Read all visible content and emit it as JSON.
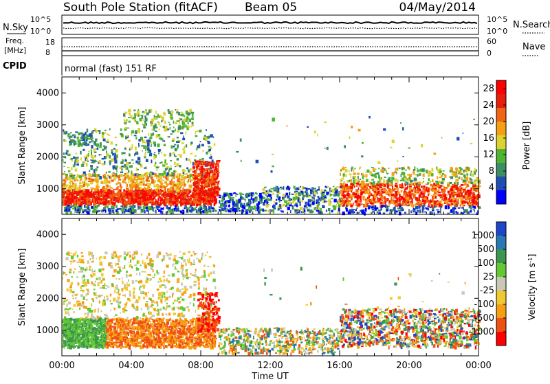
{
  "header": {
    "station": "South Pole Station (fitACF)",
    "beam": "Beam 05",
    "date": "04/May/2014"
  },
  "summary_panels": {
    "nsky_label": "N.Sky",
    "nsearch_label": "N.Search",
    "nsky_ticks": [
      "10^5",
      "10^0"
    ],
    "nsearch_ticks": [
      "10^5",
      "10^0"
    ],
    "freq_label_1": "Freq.",
    "freq_label_2": "[MHz]",
    "freq_ticks": [
      "18",
      "8"
    ],
    "nave_label": "Nave",
    "nave_ticks": [
      "60",
      "0"
    ],
    "cpid_label": "CPID",
    "cpid_text": "normal (fast) 151 RF"
  },
  "colors": {
    "power": [
      "#0000ff",
      "#1e4eb4",
      "#3c8c64",
      "#50b432",
      "#dcd232",
      "#f5a014",
      "#f06414",
      "#e61e0a",
      "#ff0000"
    ],
    "velocity": [
      "#ff0000",
      "#f05014",
      "#f5a014",
      "#f0c832",
      "#c8c8b4",
      "#64c832",
      "#3c9650",
      "#2878b4",
      "#1e46c8"
    ]
  },
  "chart_data": [
    {
      "type": "heatmap",
      "name": "power",
      "xlabel": "",
      "ylabel": "Slant Range [km]",
      "ylim": [
        200,
        4500
      ],
      "yticks": [
        1000,
        2000,
        3000,
        4000
      ],
      "colorbar_label": "Power [dB]",
      "colorbar_ticks": [
        4,
        8,
        12,
        16,
        20,
        24,
        28
      ],
      "colorbar_range": [
        0,
        30
      ]
    },
    {
      "type": "heatmap",
      "name": "velocity",
      "xlabel": "Time UT",
      "ylabel": "Slant Range [km]",
      "ylim": [
        200,
        4500
      ],
      "yticks": [
        1000,
        2000,
        3000,
        4000
      ],
      "xticks": [
        "00:00",
        "04:00",
        "08:00",
        "12:00",
        "16:00",
        "20:00",
        "00:00"
      ],
      "colorbar_label": "Velocity [m s",
      "colorbar_label_sup": "-1",
      "colorbar_label_end": "]",
      "colorbar_ticks": [
        "1000",
        "500",
        "100",
        "25",
        "-25",
        "-100",
        "-500",
        "-1000"
      ]
    }
  ]
}
